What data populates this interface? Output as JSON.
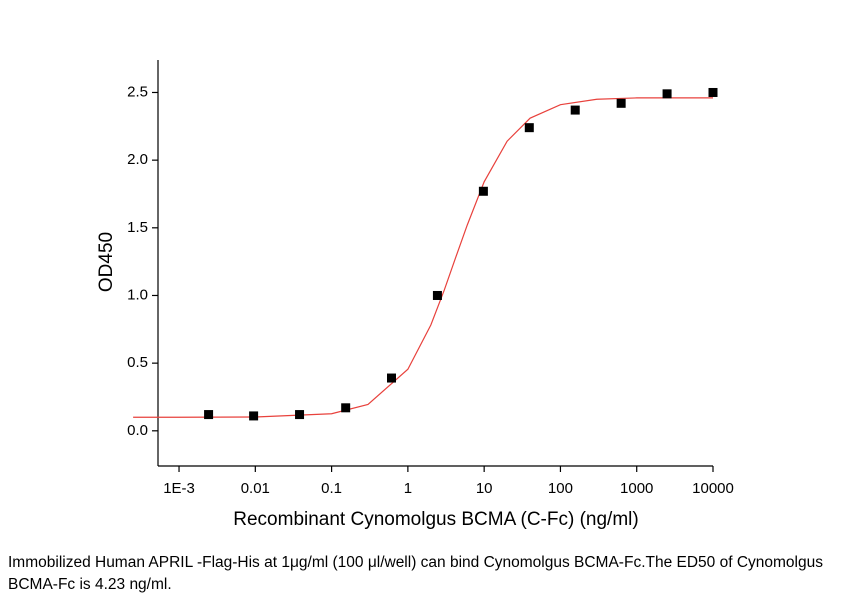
{
  "chart_data": {
    "type": "scatter",
    "x_label": "Recombinant Cynomolgus BCMA (C-Fc) (ng/ml)",
    "y_label": "OD450",
    "x_scale": "log",
    "x": [
      0.00244,
      0.0095,
      0.038,
      0.153,
      0.61,
      2.44,
      9.77,
      39.06,
      156.25,
      625,
      2500,
      10000
    ],
    "values": [
      0.12,
      0.11,
      0.12,
      0.17,
      0.39,
      1.0,
      1.77,
      2.24,
      2.37,
      2.42,
      2.49,
      2.5
    ],
    "color": "#000000",
    "fit_curve": {
      "color": "#e8413c",
      "x": [
        0.00025,
        0.001,
        0.01,
        0.1,
        0.3,
        1,
        2,
        3,
        4.23,
        6,
        10,
        20,
        40,
        100,
        300,
        1000,
        10000
      ],
      "values": [
        0.1,
        0.1,
        0.102,
        0.126,
        0.195,
        0.455,
        0.782,
        1.04,
        1.28,
        1.52,
        1.84,
        2.14,
        2.31,
        2.41,
        2.45,
        2.46,
        2.46
      ]
    },
    "xlim": [
      0.00053,
      10000
    ],
    "ylim": [
      -0.26,
      2.74
    ],
    "xticks": [
      {
        "value": 0.001,
        "label": "1E-3"
      },
      0.01,
      0.1,
      1,
      10,
      100,
      1000,
      10000
    ],
    "yticks": [
      {
        "value": 0,
        "label": "0.0"
      },
      0.5,
      {
        "value": 1,
        "label": "1.0"
      },
      1.5,
      {
        "value": 2,
        "label": "2.0"
      },
      2.5
    ],
    "grid": false
  },
  "caption": "Immobilized Human APRIL -Flag-His at 1μg/ml (100 μl/well) can bind Cynomolgus BCMA-Fc.The ED50 of Cynomolgus BCMA-Fc is 4.23 ng/ml."
}
